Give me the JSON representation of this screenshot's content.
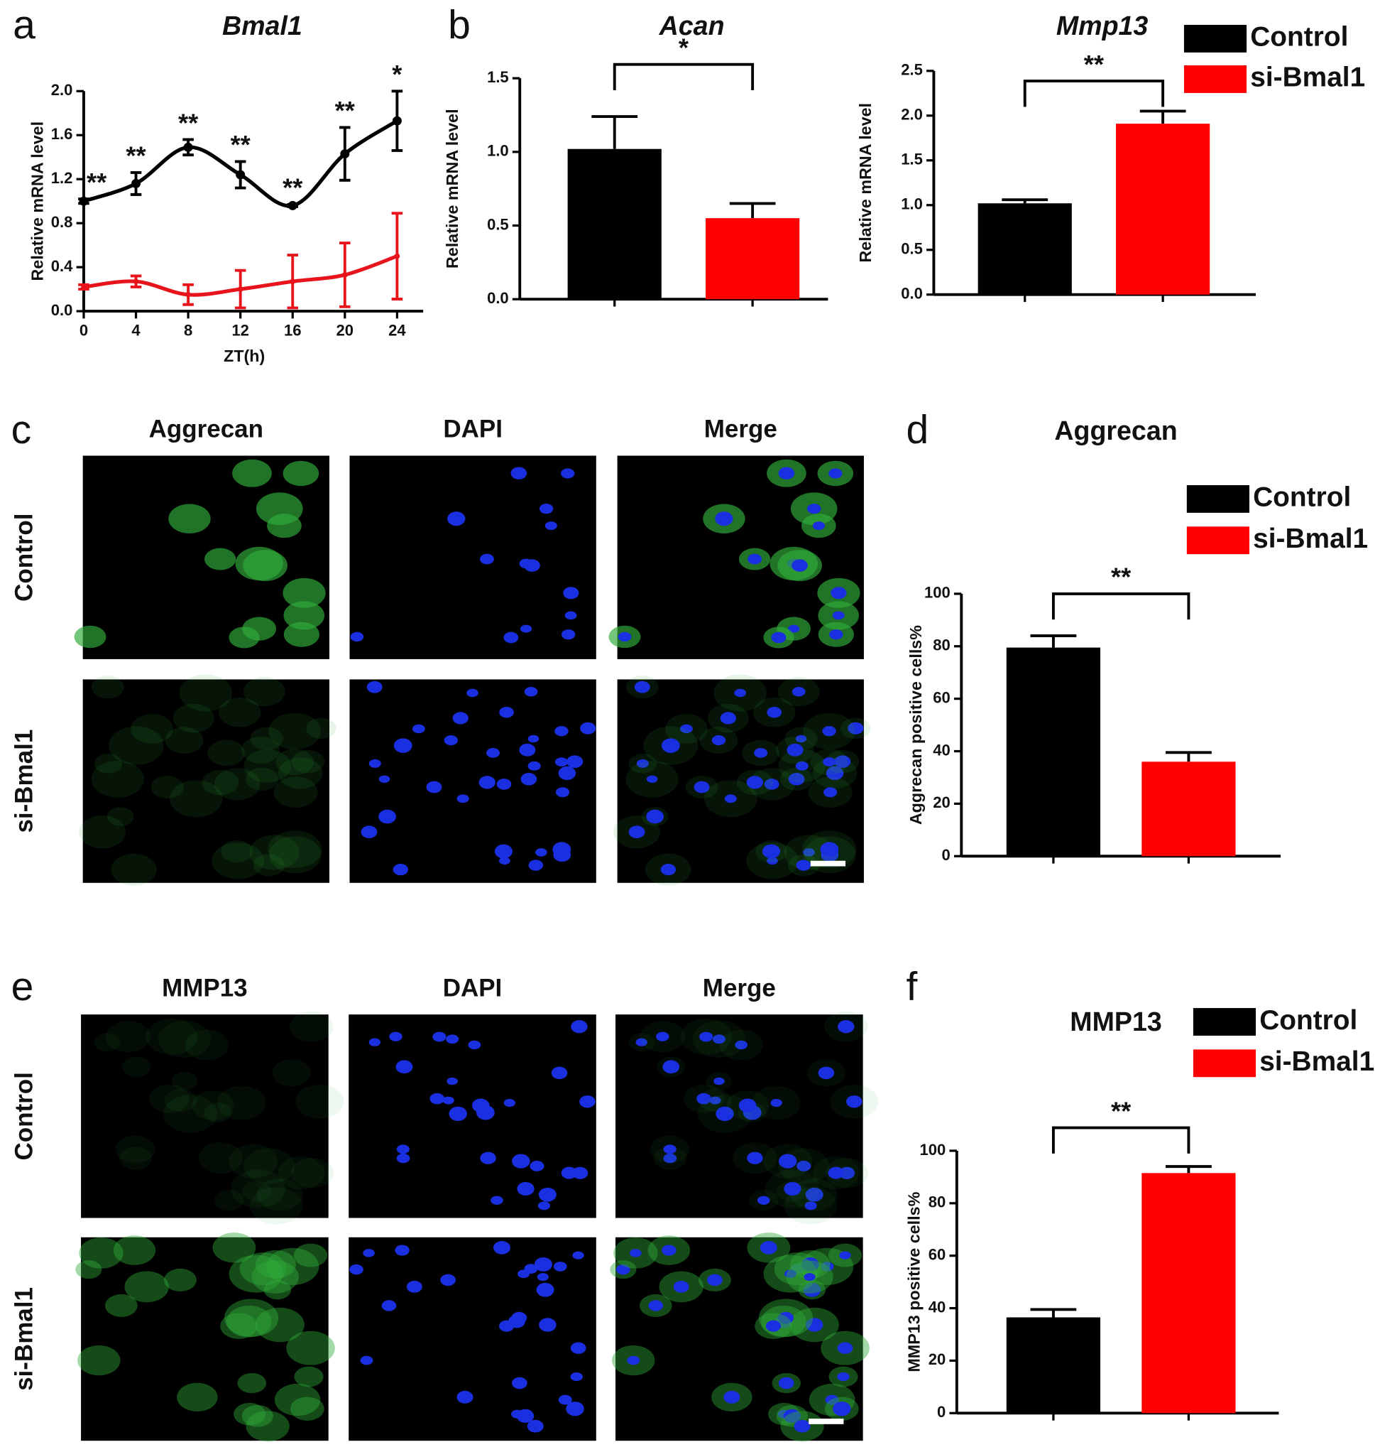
{
  "panel_labels": [
    "a",
    "b",
    "c",
    "d",
    "e",
    "f"
  ],
  "chart_data": [
    {
      "type": "line",
      "title": "Bmal1",
      "xlabel": "ZT(h)",
      "ylabel": "Relative  mRNA level",
      "x": [
        0,
        4,
        8,
        12,
        16,
        20,
        24
      ],
      "xlim": [
        0,
        26
      ],
      "xticks": [
        0,
        4,
        8,
        12,
        16,
        20,
        24
      ],
      "ylim": [
        0,
        2
      ],
      "yticks": [
        {
          "value": 0,
          "label": "0.0"
        },
        0.4,
        0.8,
        1.2,
        1.6,
        {
          "value": 2,
          "label": "2.0"
        }
      ],
      "series": [
        {
          "color": "#000000",
          "values": [
            1.0,
            1.16,
            1.49,
            1.24,
            0.96,
            1.43,
            1.73
          ],
          "errors": [
            0.02,
            0.1,
            0.07,
            0.12,
            0.01,
            0.24,
            0.27
          ]
        },
        {
          "color": "#e8141c",
          "values": [
            0.22,
            0.27,
            0.15,
            0.2,
            0.27,
            0.33,
            0.5
          ],
          "errors": [
            0.02,
            0.05,
            0.09,
            0.17,
            0.24,
            0.29,
            0.39
          ]
        }
      ],
      "significance": [
        "**",
        "**",
        "**",
        "**",
        "**",
        "**",
        "*"
      ]
    },
    {
      "type": "bar",
      "title": "Acan",
      "ylabel": "Relative mRNA level",
      "ylim": [
        0,
        1.5
      ],
      "yticks": [
        {
          "value": 0,
          "label": "0.0"
        },
        0.5,
        {
          "value": 1,
          "label": "1.0"
        },
        1.5
      ],
      "series": [
        {
          "color": "#000000",
          "values": [
            1.02
          ],
          "errors": [
            0.22
          ]
        },
        {
          "color": "#ff0000",
          "values": [
            0.55
          ],
          "errors": [
            0.1
          ]
        }
      ],
      "significance": "*"
    },
    {
      "type": "bar",
      "title": "Mmp13",
      "ylabel": "Relative mRNA level",
      "ylim": [
        0,
        2.5
      ],
      "yticks": [
        {
          "value": 0,
          "label": "0.0"
        },
        0.5,
        {
          "value": 1,
          "label": "1.0"
        },
        1.5,
        {
          "value": 2,
          "label": "2.0"
        },
        2.5
      ],
      "series": [
        {
          "name": "Control",
          "color": "#000000",
          "values": [
            1.02
          ],
          "errors": [
            0.04
          ]
        },
        {
          "name": "si-Bmal1",
          "color": "#ff0000",
          "values": [
            1.91
          ],
          "errors": [
            0.14
          ]
        }
      ],
      "significance": "**"
    },
    {
      "type": "bar",
      "title": "Aggrecan",
      "ylabel": "Aggrecan positive cells%",
      "ylim": [
        0,
        100
      ],
      "yticks": [
        0,
        20,
        40,
        60,
        80,
        100
      ],
      "series": [
        {
          "name": "Control",
          "color": "#000000",
          "values": [
            79.5
          ],
          "errors": [
            4.5
          ]
        },
        {
          "name": "si-Bmal1",
          "color": "#ff0000",
          "values": [
            36
          ],
          "errors": [
            3.5
          ]
        }
      ],
      "significance": "**"
    },
    {
      "type": "bar",
      "title": "MMP13",
      "ylabel": "MMP13 positive cells%",
      "ylim": [
        0,
        100
      ],
      "yticks": [
        0,
        20,
        40,
        60,
        80,
        100
      ],
      "series": [
        {
          "name": "Control",
          "color": "#000000",
          "values": [
            36.5
          ],
          "errors": [
            3
          ]
        },
        {
          "name": "si-Bmal1",
          "color": "#ff0000",
          "values": [
            91.5
          ],
          "errors": [
            2.5
          ]
        }
      ],
      "significance": "**"
    }
  ],
  "images": [
    {
      "columns": [
        "Aggrecan",
        "DAPI",
        "Merge"
      ],
      "rows": [
        "Control",
        "si-Bmal1"
      ]
    },
    {
      "columns": [
        "MMP13",
        "DAPI",
        "Merge"
      ],
      "rows": [
        "Control",
        "si-Bmal1"
      ]
    }
  ]
}
